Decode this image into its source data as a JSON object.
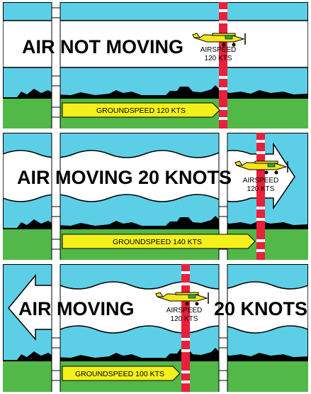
{
  "colors": {
    "sky": "#5ccfe6",
    "grass": "#52b848",
    "ground_silhouette": "#000000",
    "arrow_fill": "#ffffff",
    "groundspeed_arrow": "#f4f01c",
    "airspeed_marker": "#e8203c",
    "reference_marker": "#ffffff",
    "plane_body": "#f4e61c",
    "plane_accent": "#22a84a"
  },
  "panels": [
    {
      "title": "AIR NOT MOVING",
      "airspeed_line1": "AIRSPEED",
      "airspeed_line2": "120 KTS",
      "groundspeed": "GROUNDSPEED 120 KTS"
    },
    {
      "title": "AIR MOVING 20 KNOTS",
      "airspeed_line1": "AIRSPEED",
      "airspeed_line2": "120 KTS",
      "groundspeed": "GROUNDSPEED 140 KTS"
    },
    {
      "title_left": "AIR MOVING",
      "title_right": "20 KNOTS",
      "airspeed_line1": "AIRSPEED",
      "airspeed_line2": "120 KTS",
      "groundspeed": "GROUNDSPEED 100 KTS"
    }
  ]
}
